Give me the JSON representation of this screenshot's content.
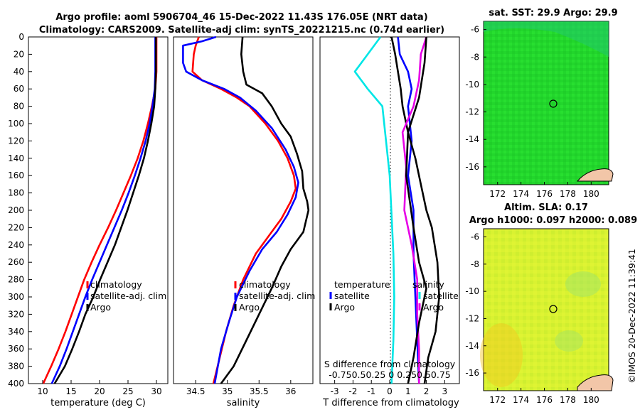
{
  "figure": {
    "title_line1": "Argo profile: aoml 5906704_46 15-Dec-2022 11.43S 176.05E (NRT data)",
    "title_line2": "Climatology: CARS2009. Satellite-adj clim: synTS_20221215.nc (0.74d earlier)",
    "timestamp": "©IMOS 20-Dec-2022 11:39:41"
  },
  "colors": {
    "climatology": "#ff0000",
    "satellite": "#0000ff",
    "argo": "#000000",
    "salinity_diff": "#e600e6",
    "temp_diff": "#00e6e6"
  },
  "chart_data": [
    {
      "type": "line",
      "id": "temperature",
      "xlabel": "temperature (deg C)",
      "ylabel": "",
      "xlim": [
        7.5,
        32
      ],
      "ylim": [
        400,
        0
      ],
      "x_ticks": [
        "10",
        "15",
        "20",
        "25",
        "30"
      ],
      "y_ticks": [
        "0",
        "20",
        "40",
        "60",
        "80",
        "100",
        "120",
        "140",
        "160",
        "180",
        "200",
        "220",
        "240",
        "260",
        "280",
        "300",
        "320",
        "340",
        "360",
        "380",
        "400"
      ],
      "legend": [
        "climatology",
        "satellite-adj. clim",
        "Argo"
      ],
      "series": [
        {
          "name": "climatology",
          "points": [
            [
              30,
              0
            ],
            [
              30,
              20
            ],
            [
              30,
              40
            ],
            [
              29.8,
              60
            ],
            [
              29.2,
              80
            ],
            [
              28.5,
              100
            ],
            [
              27.7,
              120
            ],
            [
              26.7,
              140
            ],
            [
              25.5,
              160
            ],
            [
              24.2,
              180
            ],
            [
              22.9,
              200
            ],
            [
              21.5,
              220
            ],
            [
              20,
              240
            ],
            [
              18.6,
              260
            ],
            [
              17.3,
              280
            ],
            [
              16.2,
              300
            ],
            [
              15.1,
              320
            ],
            [
              14,
              340
            ],
            [
              12.8,
              360
            ],
            [
              11.5,
              380
            ],
            [
              10.1,
              400
            ]
          ]
        },
        {
          "name": "satellite-adj. clim",
          "points": [
            [
              29.8,
              0
            ],
            [
              29.8,
              20
            ],
            [
              29.8,
              40
            ],
            [
              29.7,
              60
            ],
            [
              29.3,
              80
            ],
            [
              28.8,
              100
            ],
            [
              28.1,
              120
            ],
            [
              27.2,
              140
            ],
            [
              26.2,
              160
            ],
            [
              25.1,
              180
            ],
            [
              23.9,
              200
            ],
            [
              22.6,
              220
            ],
            [
              21.3,
              240
            ],
            [
              20,
              260
            ],
            [
              18.7,
              280
            ],
            [
              17.5,
              300
            ],
            [
              16.4,
              320
            ],
            [
              15.3,
              340
            ],
            [
              14.2,
              360
            ],
            [
              13,
              380
            ],
            [
              11.6,
              400
            ]
          ]
        },
        {
          "name": "Argo",
          "points": [
            [
              29.9,
              0
            ],
            [
              29.9,
              20
            ],
            [
              29.9,
              40
            ],
            [
              29.8,
              60
            ],
            [
              29.6,
              80
            ],
            [
              29.1,
              100
            ],
            [
              28.5,
              120
            ],
            [
              27.8,
              140
            ],
            [
              26.9,
              160
            ],
            [
              25.9,
              180
            ],
            [
              24.9,
              200
            ],
            [
              23.8,
              220
            ],
            [
              22.7,
              240
            ],
            [
              21.4,
              260
            ],
            [
              20.1,
              280
            ],
            [
              18.9,
              300
            ],
            [
              17.5,
              320
            ],
            [
              16.4,
              340
            ],
            [
              15.2,
              360
            ],
            [
              13.9,
              380
            ],
            [
              12.1,
              400
            ]
          ]
        }
      ]
    },
    {
      "type": "line",
      "id": "salinity",
      "xlabel": "salinity",
      "xlim": [
        34.15,
        36.35
      ],
      "ylim": [
        400,
        0
      ],
      "x_ticks": [
        "34.5",
        "35",
        "35.5",
        "36"
      ],
      "legend": [
        "climatology",
        "satellite-adj. clim",
        "Argo"
      ],
      "series": [
        {
          "name": "climatology",
          "points": [
            [
              34.55,
              0
            ],
            [
              34.5,
              10
            ],
            [
              34.47,
              20
            ],
            [
              34.45,
              40
            ],
            [
              34.6,
              50
            ],
            [
              34.9,
              60
            ],
            [
              35.15,
              70
            ],
            [
              35.35,
              80
            ],
            [
              35.6,
              100
            ],
            [
              35.8,
              120
            ],
            [
              35.95,
              140
            ],
            [
              36.05,
              160
            ],
            [
              36.08,
              175
            ],
            [
              36.0,
              190
            ],
            [
              35.85,
              210
            ],
            [
              35.65,
              230
            ],
            [
              35.45,
              250
            ],
            [
              35.25,
              280
            ],
            [
              35.1,
              310
            ],
            [
              34.98,
              340
            ],
            [
              34.88,
              370
            ],
            [
              34.78,
              400
            ]
          ]
        },
        {
          "name": "satellite-adj. clim",
          "points": [
            [
              34.82,
              0
            ],
            [
              34.6,
              5
            ],
            [
              34.3,
              10
            ],
            [
              34.3,
              20
            ],
            [
              34.3,
              30
            ],
            [
              34.35,
              40
            ],
            [
              34.6,
              50
            ],
            [
              34.95,
              60
            ],
            [
              35.2,
              70
            ],
            [
              35.45,
              85
            ],
            [
              35.7,
              105
            ],
            [
              35.92,
              130
            ],
            [
              36.05,
              150
            ],
            [
              36.12,
              168
            ],
            [
              36.08,
              185
            ],
            [
              35.95,
              205
            ],
            [
              35.78,
              225
            ],
            [
              35.55,
              245
            ],
            [
              35.35,
              270
            ],
            [
              35.15,
              300
            ],
            [
              35.02,
              330
            ],
            [
              34.9,
              360
            ],
            [
              34.8,
              400
            ]
          ]
        },
        {
          "name": "Argo",
          "points": [
            [
              35.24,
              0
            ],
            [
              35.22,
              20
            ],
            [
              35.25,
              40
            ],
            [
              35.3,
              55
            ],
            [
              35.55,
              65
            ],
            [
              35.7,
              80
            ],
            [
              35.85,
              100
            ],
            [
              36.0,
              115
            ],
            [
              36.1,
              135
            ],
            [
              36.18,
              155
            ],
            [
              36.2,
              175
            ],
            [
              36.26,
              190
            ],
            [
              36.28,
              200
            ],
            [
              36.2,
              225
            ],
            [
              36.0,
              245
            ],
            [
              35.85,
              265
            ],
            [
              35.7,
              290
            ],
            [
              35.5,
              320
            ],
            [
              35.3,
              350
            ],
            [
              35.1,
              380
            ],
            [
              34.9,
              400
            ]
          ]
        }
      ]
    },
    {
      "type": "line",
      "id": "difference",
      "xlabel": "T difference from climatology",
      "xlabel_top_line1": "S difference from climatology",
      "xlabel_top_line2": "-0.750.50.25 0 0.250.50.75",
      "xlim": [
        -3.8,
        3.8
      ],
      "ylim": [
        400,
        0
      ],
      "x_ticks": [
        "-3",
        "-2",
        "-1",
        "0",
        "1",
        "2",
        "3"
      ],
      "legend_left": [
        "temperature",
        "satellite",
        "Argo"
      ],
      "legend_right": [
        "salinity",
        "satellite",
        "Argo"
      ],
      "series": [
        {
          "name": "temperature satellite",
          "points": [
            [
              -0.5,
              0
            ],
            [
              -1.2,
              20
            ],
            [
              -1.9,
              40
            ],
            [
              -1.2,
              60
            ],
            [
              -0.4,
              80
            ],
            [
              0,
              160
            ],
            [
              0.2,
              250
            ],
            [
              0.25,
              300
            ],
            [
              0.2,
              350
            ],
            [
              0.1,
              400
            ]
          ]
        },
        {
          "name": "temperature satellite (blue)",
          "points": [
            [
              0.45,
              0
            ],
            [
              0.55,
              20
            ],
            [
              1.0,
              40
            ],
            [
              1.2,
              60
            ],
            [
              1.0,
              80
            ],
            [
              1.2,
              120
            ],
            [
              1.0,
              160
            ],
            [
              1.3,
              200
            ],
            [
              1.3,
              250
            ],
            [
              1.4,
              300
            ],
            [
              1.5,
              350
            ],
            [
              1.6,
              400
            ]
          ]
        },
        {
          "name": "temperature Argo",
          "points": [
            [
              0.1,
              0
            ],
            [
              0.3,
              20
            ],
            [
              0.45,
              40
            ],
            [
              0.6,
              60
            ],
            [
              0.7,
              80
            ],
            [
              1.0,
              110
            ],
            [
              1.4,
              140
            ],
            [
              1.7,
              170
            ],
            [
              2.0,
              200
            ],
            [
              2.3,
              220
            ],
            [
              2.6,
              260
            ],
            [
              2.7,
              300
            ],
            [
              2.5,
              340
            ],
            [
              2.1,
              370
            ],
            [
              1.9,
              400
            ]
          ]
        },
        {
          "name": "salinity satellite",
          "points": [
            [
              2.0,
              0
            ],
            [
              1.7,
              20
            ],
            [
              1.6,
              50
            ],
            [
              1.3,
              80
            ],
            [
              0.7,
              110
            ],
            [
              0.9,
              150
            ],
            [
              0.8,
              200
            ],
            [
              1.2,
              240
            ],
            [
              1.5,
              280
            ],
            [
              1.5,
              320
            ],
            [
              1.6,
              360
            ],
            [
              1.6,
              400
            ]
          ]
        },
        {
          "name": "salinity Argo",
          "points": [
            [
              2.0,
              0
            ],
            [
              1.9,
              30
            ],
            [
              1.6,
              70
            ],
            [
              1.0,
              110
            ],
            [
              0.9,
              160
            ],
            [
              1.3,
              220
            ],
            [
              1.6,
              260
            ],
            [
              2.0,
              290
            ],
            [
              1.6,
              330
            ],
            [
              1.3,
              370
            ],
            [
              1.0,
              400
            ]
          ]
        }
      ]
    }
  ],
  "maps": {
    "sst": {
      "title": "sat. SST: 29.9 Argo: 29.9",
      "x_ticks": [
        "172",
        "174",
        "176",
        "178",
        "180"
      ],
      "y_ticks": [
        "-6",
        "-8",
        "-10",
        "-12",
        "-14",
        "-16"
      ]
    },
    "sla": {
      "title_line1": "Altim. SLA: 0.17",
      "title_line2": "Argo h1000: 0.097 h2000: 0.089",
      "x_ticks": [
        "172",
        "174",
        "176",
        "178",
        "180"
      ],
      "y_ticks": [
        "-6",
        "-8",
        "-10",
        "-12",
        "-14",
        "-16"
      ]
    }
  }
}
